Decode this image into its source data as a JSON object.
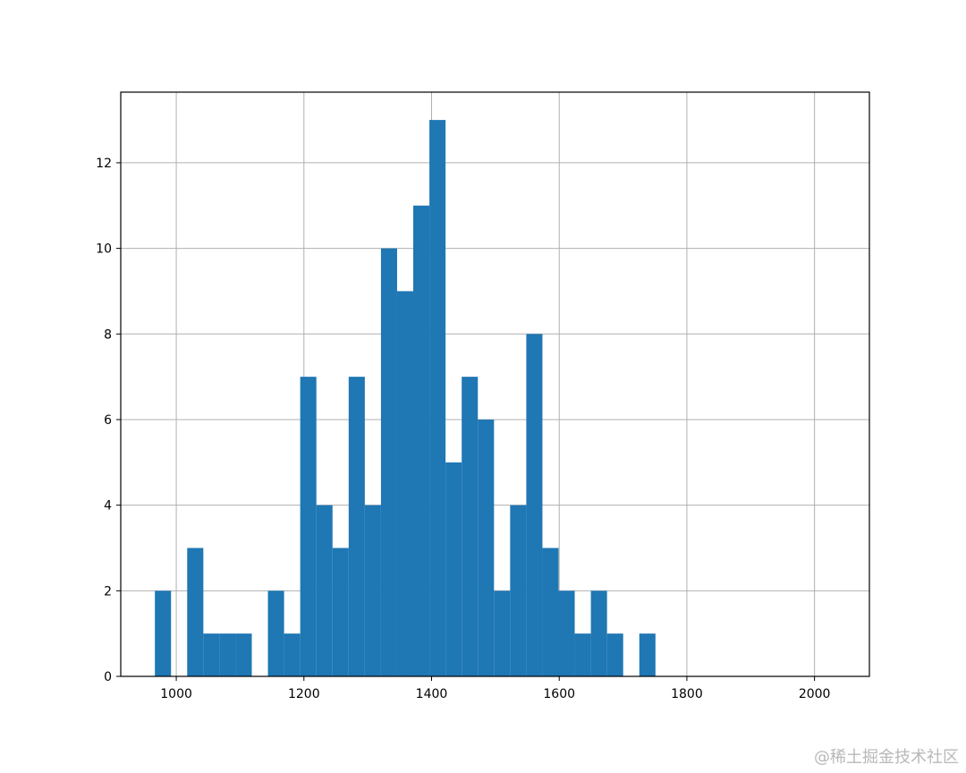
{
  "chart_data": {
    "type": "bar",
    "subtype": "histogram",
    "title": "",
    "xlabel": "",
    "ylabel": "",
    "bin_start": 966.5,
    "bin_width": 25.3,
    "counts": [
      2,
      0,
      3,
      1,
      1,
      1,
      0,
      2,
      1,
      7,
      4,
      3,
      7,
      4,
      10,
      9,
      11,
      13,
      5,
      7,
      6,
      2,
      4,
      8,
      3,
      2,
      1,
      2,
      1,
      0,
      1
    ],
    "xlim": [
      913,
      2086
    ],
    "ylim": [
      0,
      13.65
    ],
    "x_ticks": [
      1000,
      1200,
      1400,
      1600,
      1800,
      2000
    ],
    "y_ticks": [
      0,
      2,
      4,
      6,
      8,
      10,
      12
    ],
    "grid": true,
    "bar_color": "#1f77b4",
    "grid_color": "#b0b0b0"
  },
  "watermark": "@稀土掘金技术社区"
}
